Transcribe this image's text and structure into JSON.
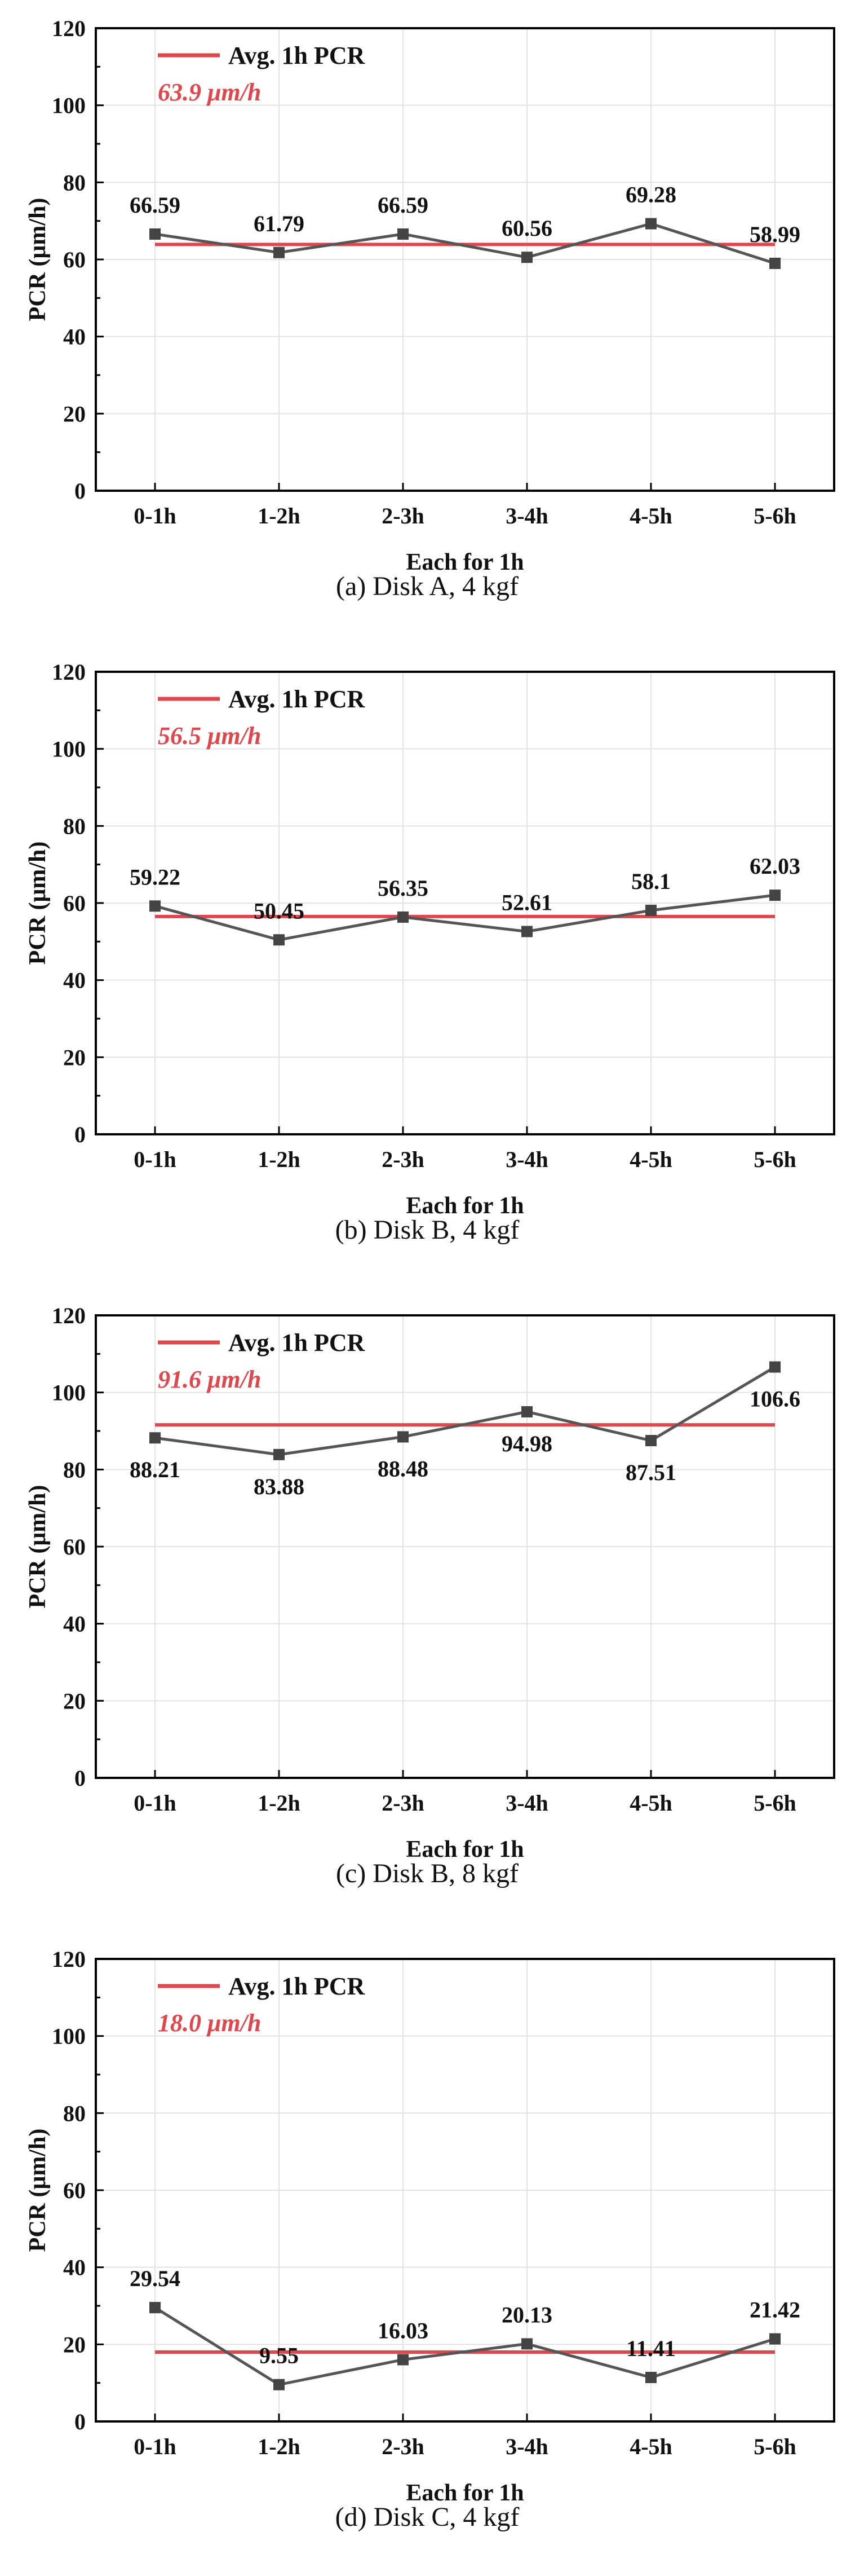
{
  "colors": {
    "series_line": "#555555",
    "series_marker": "#444444",
    "avg_line": "#e0474c",
    "avg_text": "#e0474c",
    "grid": "#e3e3e3",
    "axis": "#000000"
  },
  "chart_data": [
    {
      "type": "line",
      "caption": "(a) Disk A, 4 kgf",
      "xlabel": "Each for 1h",
      "ylabel": "PCR (μm/h)",
      "categories": [
        "0-1h",
        "1-2h",
        "2-3h",
        "3-4h",
        "4-5h",
        "5-6h"
      ],
      "ylim": [
        0,
        120
      ],
      "yticks": [
        0,
        20,
        40,
        60,
        80,
        100,
        120
      ],
      "grid": true,
      "series": [
        {
          "values": [
            66.59,
            61.79,
            66.59,
            60.56,
            69.28,
            58.99
          ],
          "labels": [
            "66.59",
            "61.79",
            "66.59",
            "60.56",
            "69.28",
            "58.99"
          ],
          "label_position": [
            "above",
            "above",
            "above",
            "above",
            "above",
            "above"
          ]
        }
      ],
      "legend": {
        "entry": "Avg. 1h PCR",
        "position": "top-left"
      },
      "average": {
        "value": 63.9,
        "text": "63.9 μm/h"
      }
    },
    {
      "type": "line",
      "caption": "(b) Disk B, 4 kgf",
      "xlabel": "Each for 1h",
      "ylabel": "PCR (μm/h)",
      "categories": [
        "0-1h",
        "1-2h",
        "2-3h",
        "3-4h",
        "4-5h",
        "5-6h"
      ],
      "ylim": [
        0,
        120
      ],
      "yticks": [
        0,
        20,
        40,
        60,
        80,
        100,
        120
      ],
      "grid": true,
      "series": [
        {
          "values": [
            59.22,
            50.45,
            56.35,
            52.61,
            58.1,
            62.03
          ],
          "labels": [
            "59.22",
            "50.45",
            "56.35",
            "52.61",
            "58.1",
            "62.03"
          ],
          "label_position": [
            "above",
            "above",
            "above",
            "above",
            "above",
            "above"
          ]
        }
      ],
      "legend": {
        "entry": "Avg. 1h PCR",
        "position": "top-left"
      },
      "average": {
        "value": 56.5,
        "text": "56.5 μm/h"
      }
    },
    {
      "type": "line",
      "caption": "(c) Disk B, 8 kgf",
      "xlabel": "Each for 1h",
      "ylabel": "PCR (μm/h)",
      "categories": [
        "0-1h",
        "1-2h",
        "2-3h",
        "3-4h",
        "4-5h",
        "5-6h"
      ],
      "ylim": [
        0,
        120
      ],
      "yticks": [
        0,
        20,
        40,
        60,
        80,
        100,
        120
      ],
      "grid": true,
      "series": [
        {
          "values": [
            88.21,
            83.88,
            88.48,
            94.98,
            87.51,
            106.6
          ],
          "labels": [
            "88.21",
            "83.88",
            "88.48",
            "94.98",
            "87.51",
            "106.6"
          ],
          "label_position": [
            "below",
            "below",
            "below",
            "below",
            "below",
            "below"
          ]
        }
      ],
      "legend": {
        "entry": "Avg. 1h PCR",
        "position": "top-left"
      },
      "average": {
        "value": 91.6,
        "text": "91.6 μm/h"
      }
    },
    {
      "type": "line",
      "caption": "(d) Disk C, 4 kgf",
      "xlabel": "Each for 1h",
      "ylabel": "PCR (μm/h)",
      "categories": [
        "0-1h",
        "1-2h",
        "2-3h",
        "3-4h",
        "4-5h",
        "5-6h"
      ],
      "ylim": [
        0,
        120
      ],
      "yticks": [
        0,
        20,
        40,
        60,
        80,
        100,
        120
      ],
      "grid": true,
      "series": [
        {
          "values": [
            29.54,
            9.55,
            16.03,
            20.13,
            11.41,
            21.42
          ],
          "labels": [
            "29.54",
            "9.55",
            "16.03",
            "20.13",
            "11.41",
            "21.42"
          ],
          "label_position": [
            "above",
            "above",
            "above",
            "above",
            "above",
            "above"
          ]
        }
      ],
      "legend": {
        "entry": "Avg. 1h PCR",
        "position": "top-left"
      },
      "average": {
        "value": 18.0,
        "text": "18.0 μm/h"
      }
    }
  ]
}
